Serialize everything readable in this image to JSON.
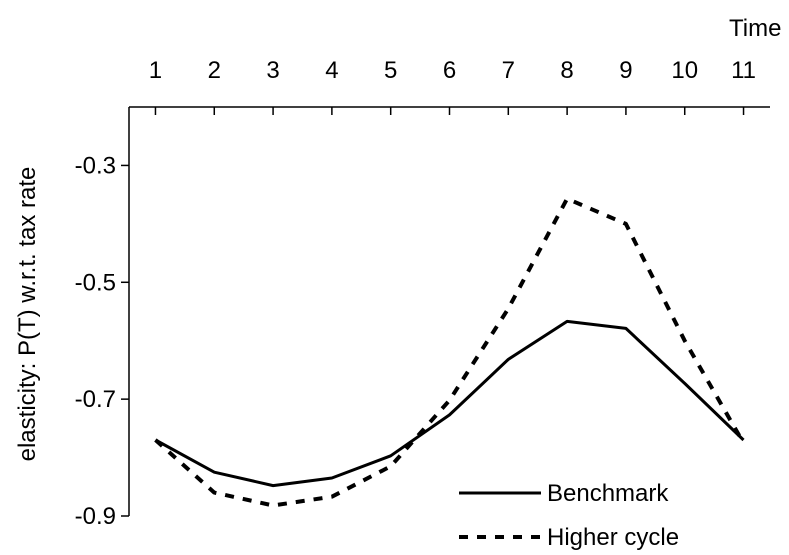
{
  "chart_data": {
    "type": "line",
    "title": "",
    "xlabel": "Time",
    "ylabel": "elasticity: P(T) w.r.t. tax rate",
    "x": [
      1,
      2,
      3,
      4,
      5,
      6,
      7,
      8,
      9,
      10,
      11
    ],
    "xlim": [
      0.55,
      11.45
    ],
    "ylim": [
      -0.9,
      -0.2
    ],
    "yticks": [
      -0.9,
      -0.7,
      -0.5,
      -0.3
    ],
    "ytick_labels": [
      "-0.9",
      "-0.7",
      "-0.5",
      "-0.3"
    ],
    "x_axis_position": "top",
    "grid": false,
    "legend_position": "bottom-right",
    "series": [
      {
        "name": "Benchmark",
        "style": "solid",
        "color": "#000000",
        "values": [
          -0.77,
          -0.825,
          -0.848,
          -0.835,
          -0.797,
          -0.727,
          -0.632,
          -0.567,
          -0.579,
          -0.673,
          -0.77
        ]
      },
      {
        "name": "Higher cycle",
        "style": "dashed",
        "color": "#000000",
        "values": [
          -0.77,
          -0.86,
          -0.882,
          -0.867,
          -0.815,
          -0.702,
          -0.545,
          -0.357,
          -0.4,
          -0.6,
          -0.775
        ]
      }
    ]
  }
}
